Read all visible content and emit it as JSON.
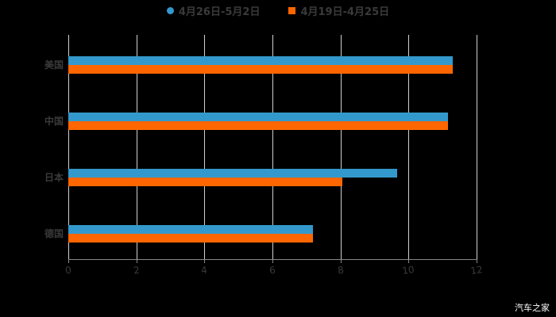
{
  "legend": [
    {
      "label": "4月26日-5月2日",
      "color": "#3399cc",
      "marker": "circle"
    },
    {
      "label": "4月19日-4月25日",
      "color": "#ff6600",
      "marker": "square"
    }
  ],
  "watermark": "汽车之家",
  "chart_data": {
    "type": "bar",
    "orientation": "horizontal",
    "title": "",
    "xlabel": "",
    "ylabel": "",
    "categories": [
      "美国",
      "中国",
      "日本",
      "德国"
    ],
    "series": [
      {
        "name": "4月26日-5月2日",
        "color": "#3399cc",
        "values": [
          11.3,
          11.15,
          9.67,
          7.2
        ]
      },
      {
        "name": "4月19日-4月25日",
        "color": "#ff6600",
        "values": [
          11.3,
          11.15,
          8.06,
          7.2
        ]
      }
    ],
    "xlim": [
      0,
      12
    ],
    "xticks": [
      "0",
      "2",
      "4",
      "6",
      "8",
      "10",
      "12"
    ],
    "grid": true,
    "legend_position": "top"
  }
}
